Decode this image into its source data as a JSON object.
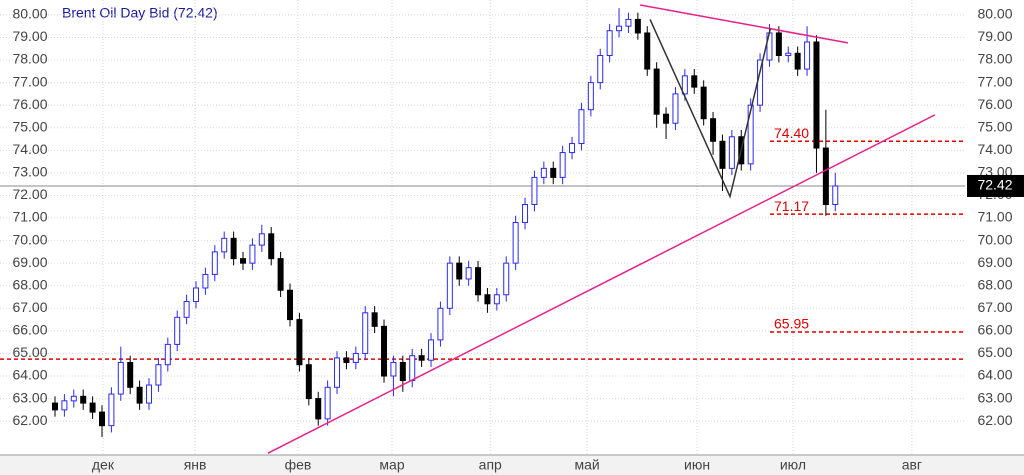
{
  "chart_data": {
    "type": "candlestick",
    "title": "Brent Oil Day Bid (72.42)",
    "x": [
      0,
      2,
      4,
      6,
      8,
      10,
      12,
      14,
      16,
      18,
      20,
      22,
      24,
      26,
      28,
      30,
      32,
      34,
      36,
      38,
      40,
      42,
      44,
      46,
      48,
      50,
      52,
      54,
      56,
      58,
      60,
      62,
      64,
      66,
      68,
      70,
      72,
      74,
      76,
      78,
      80,
      82,
      84,
      86,
      88,
      90,
      92,
      94,
      96,
      98,
      100,
      102,
      104,
      106,
      108,
      110,
      112,
      114,
      116,
      118,
      120,
      122,
      124,
      126,
      128,
      130,
      132,
      134,
      136,
      138,
      140,
      142,
      144,
      146,
      148,
      150,
      152,
      154,
      156,
      158,
      160,
      162,
      164,
      166
    ],
    "open": [
      62.8,
      62.5,
      62.9,
      63.1,
      62.8,
      62.4,
      61.8,
      63.2,
      64.6,
      63.5,
      62.8,
      63.6,
      64.5,
      65.4,
      66.6,
      67.3,
      67.9,
      68.5,
      69.5,
      70.1,
      69.2,
      69.0,
      69.8,
      70.3,
      69.2,
      67.8,
      66.5,
      64.5,
      63.0,
      62.1,
      63.5,
      64.8,
      64.6,
      65.0,
      66.8,
      66.2,
      64.0,
      64.6,
      63.8,
      64.9,
      64.7,
      65.6,
      67.0,
      69.0,
      68.3,
      68.8,
      67.6,
      67.2,
      67.6,
      69.0,
      70.8,
      71.6,
      72.8,
      73.2,
      72.8,
      73.9,
      74.3,
      75.8,
      77.0,
      78.2,
      79.3,
      79.5,
      79.8,
      79.2,
      77.6,
      75.6,
      75.2,
      76.5,
      77.3,
      76.8,
      75.4,
      74.4,
      73.2,
      74.6,
      73.4,
      76.0,
      78.0,
      79.2,
      78.2,
      78.3,
      77.6,
      78.8,
      74.1,
      71.6
    ],
    "high": [
      63.1,
      63.2,
      63.4,
      63.4,
      63.1,
      62.7,
      63.5,
      65.3,
      64.9,
      63.8,
      63.9,
      64.8,
      65.7,
      66.9,
      67.6,
      68.2,
      68.8,
      69.8,
      70.4,
      70.4,
      69.5,
      70.1,
      70.7,
      70.6,
      69.5,
      68.1,
      66.8,
      64.8,
      63.3,
      63.8,
      65.1,
      65.1,
      65.3,
      67.1,
      67.1,
      66.5,
      64.9,
      64.9,
      65.2,
      65.2,
      65.9,
      67.3,
      69.3,
      69.3,
      69.1,
      69.1,
      67.9,
      67.9,
      69.3,
      71.1,
      71.9,
      73.1,
      73.5,
      73.5,
      74.2,
      74.6,
      76.1,
      77.3,
      78.5,
      79.6,
      80.3,
      80.1,
      80.1,
      79.5,
      77.9,
      75.9,
      76.8,
      77.6,
      77.6,
      77.1,
      75.7,
      74.7,
      74.9,
      74.9,
      76.3,
      78.3,
      79.6,
      79.5,
      78.6,
      78.6,
      79.5,
      79.1,
      75.8,
      73.0
    ],
    "low": [
      62.2,
      62.2,
      62.6,
      62.5,
      62.1,
      61.3,
      61.5,
      62.9,
      63.2,
      62.5,
      62.5,
      63.3,
      64.2,
      65.1,
      66.3,
      67.0,
      67.6,
      68.2,
      69.2,
      68.9,
      68.7,
      68.7,
      69.5,
      68.9,
      67.5,
      66.2,
      64.2,
      62.7,
      61.8,
      61.8,
      63.2,
      64.3,
      64.3,
      64.7,
      65.9,
      63.7,
      63.1,
      63.3,
      63.5,
      64.4,
      64.4,
      65.3,
      66.7,
      68.0,
      68.0,
      67.3,
      66.8,
      66.9,
      67.3,
      68.7,
      70.5,
      71.3,
      72.5,
      72.5,
      72.5,
      73.6,
      74.0,
      75.5,
      76.7,
      77.9,
      79.0,
      79.2,
      78.9,
      77.3,
      75.0,
      74.5,
      74.9,
      76.2,
      76.5,
      75.1,
      73.8,
      72.2,
      72.9,
      73.1,
      73.1,
      75.7,
      77.7,
      77.9,
      77.9,
      77.3,
      77.3,
      73.0,
      71.1,
      71.3
    ],
    "close": [
      62.5,
      62.9,
      63.1,
      62.8,
      62.4,
      61.8,
      63.2,
      64.6,
      63.5,
      62.8,
      63.6,
      64.5,
      65.4,
      66.6,
      67.3,
      67.9,
      68.5,
      69.5,
      70.1,
      69.2,
      69.0,
      69.8,
      70.3,
      69.2,
      67.8,
      66.5,
      64.5,
      63.0,
      62.1,
      63.5,
      64.8,
      64.6,
      65.0,
      66.8,
      66.2,
      64.0,
      64.6,
      63.8,
      64.9,
      64.7,
      65.6,
      67.0,
      69.0,
      68.3,
      68.8,
      67.6,
      67.2,
      67.6,
      69.0,
      70.8,
      71.6,
      72.8,
      73.2,
      72.8,
      73.9,
      74.3,
      75.8,
      77.0,
      78.2,
      79.3,
      79.5,
      79.8,
      79.2,
      77.6,
      75.6,
      75.2,
      76.5,
      77.3,
      76.8,
      75.4,
      74.4,
      73.2,
      74.6,
      73.4,
      76.0,
      78.0,
      79.2,
      78.2,
      78.3,
      77.6,
      78.8,
      74.1,
      71.6,
      72.42
    ],
    "up_color": "#2a2af0",
    "down_color": "#000000",
    "xlim": [
      -11.7,
      193.6
    ],
    "xticks": [
      {
        "value": 10.2,
        "label": "дек"
      },
      {
        "value": 29.8,
        "label": "янв"
      },
      {
        "value": 51.7,
        "label": "фев"
      },
      {
        "value": 71.7,
        "label": "мар"
      },
      {
        "value": 92.6,
        "label": "апр"
      },
      {
        "value": 113.2,
        "label": "май"
      },
      {
        "value": 136.6,
        "label": "июн"
      },
      {
        "value": 157,
        "label": "июл"
      },
      {
        "value": 182.3,
        "label": "авг"
      }
    ],
    "ylim": [
      60.5,
      80.66
    ],
    "yticks": [
      {
        "value": 62,
        "label": "62.00"
      },
      {
        "value": 63,
        "label": "63.00"
      },
      {
        "value": 64,
        "label": "64.00"
      },
      {
        "value": 65,
        "label": "65.00"
      },
      {
        "value": 66,
        "label": "66.00"
      },
      {
        "value": 67,
        "label": "67.00"
      },
      {
        "value": 68,
        "label": "68.00"
      },
      {
        "value": 69,
        "label": "69.00"
      },
      {
        "value": 70,
        "label": "70.00"
      },
      {
        "value": 71,
        "label": "71.00"
      },
      {
        "value": 72,
        "label": "72.00"
      },
      {
        "value": 73,
        "label": "73.00"
      },
      {
        "value": 74,
        "label": "74.00"
      },
      {
        "value": 75,
        "label": "75.00"
      },
      {
        "value": 76,
        "label": "76.00"
      },
      {
        "value": 77,
        "label": "77.00"
      },
      {
        "value": 78,
        "label": "78.00"
      },
      {
        "value": 79,
        "label": "79.00"
      },
      {
        "value": 80,
        "label": "80.00"
      }
    ],
    "grid": true,
    "last_price": {
      "value": 72.42,
      "label": "72.42"
    },
    "levels": [
      {
        "value": 74.4,
        "label": "74.40"
      },
      {
        "value": 71.17,
        "label": "71.17"
      },
      {
        "value": 65.95,
        "label": "65.95"
      },
      64.75
    ],
    "level_color": "#e00000",
    "trendlines": [
      {
        "x": [
          45.3,
          187.2
        ],
        "y": [
          60.58,
          75.57
        ],
        "color": "#e8208a"
      },
      {
        "x": [
          124.5,
          168.7
        ],
        "y": [
          80.44,
          78.76
        ],
        "color": "#e8208a"
      },
      {
        "x": [
          126.6,
          143.6,
          152.2
        ],
        "y": [
          79.8,
          71.95,
          79.4
        ],
        "color": "#333333"
      }
    ]
  }
}
